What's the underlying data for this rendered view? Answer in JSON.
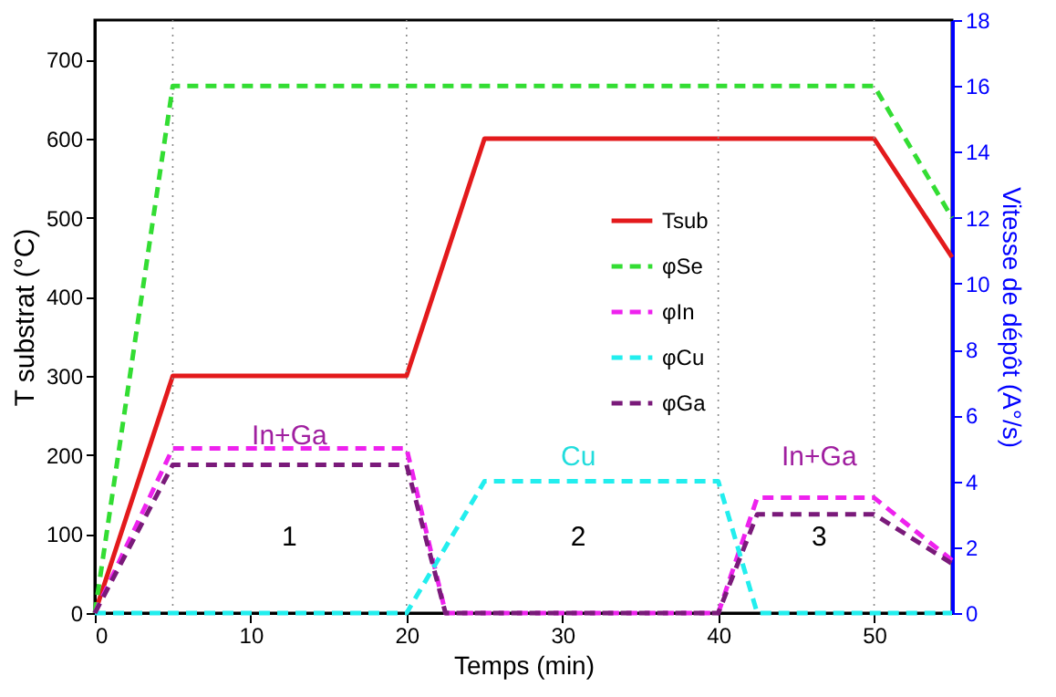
{
  "chart_data": {
    "type": "line",
    "xlabel": "Temps (min)",
    "ylabel": "T substrat (°C)",
    "y2label": "Vitesse de dépôt (A°/s)",
    "xlim": [
      0,
      55
    ],
    "xticks": [
      0,
      10,
      20,
      30,
      40,
      50
    ],
    "ylim": [
      0,
      750
    ],
    "yticks": [
      0,
      100,
      200,
      300,
      400,
      500,
      600,
      700
    ],
    "y2lim": [
      0,
      18
    ],
    "y2ticks": [
      0,
      2,
      4,
      6,
      8,
      10,
      12,
      14,
      16,
      18
    ],
    "legend": "right",
    "grid": false,
    "series": [
      {
        "name": "Tsub",
        "color": "#e31a1c",
        "line_style": "solid",
        "x": [
          0,
          5,
          20,
          25,
          50,
          55
        ],
        "values": [
          0,
          300,
          300,
          600,
          600,
          450
        ]
      },
      {
        "name": "φSe",
        "color": "#33dd33",
        "line_style": "dashed",
        "axis": "y2",
        "x": [
          0,
          5,
          50,
          55
        ],
        "values": [
          0,
          16,
          16,
          12
        ]
      },
      {
        "name": "φIn",
        "color": "#ee22ee",
        "line_style": "dashed",
        "axis": "y2",
        "x": [
          0,
          5,
          20,
          22.5,
          40,
          42.5,
          50,
          55
        ],
        "values": [
          0,
          5,
          5,
          0,
          0,
          3.5,
          3.5,
          1.6
        ]
      },
      {
        "name": "φCu",
        "color": "#22eeee",
        "line_style": "dashed",
        "axis": "y2",
        "x": [
          0,
          20,
          25,
          40,
          42.5,
          55
        ],
        "values": [
          0,
          0,
          4,
          4,
          0,
          0
        ]
      },
      {
        "name": "φGa",
        "color": "#7a1a7a",
        "line_style": "dashed",
        "axis": "y2",
        "x": [
          0,
          5,
          20,
          22.5,
          40,
          42.5,
          50,
          55
        ],
        "values": [
          0,
          4.5,
          4.5,
          0,
          0,
          3,
          3,
          1.5
        ]
      }
    ],
    "ref_lines": [
      {
        "axis": "x",
        "value": 5,
        "label": null,
        "color": "#888888",
        "line_style": "dotted"
      },
      {
        "axis": "x",
        "value": 20,
        "label": null,
        "color": "#888888",
        "line_style": "dotted"
      },
      {
        "axis": "x",
        "value": 40,
        "label": null,
        "color": "#888888",
        "line_style": "dotted"
      },
      {
        "axis": "x",
        "value": 50,
        "label": null,
        "color": "#888888",
        "line_style": "dotted"
      }
    ],
    "annotations": [
      "In+Ga",
      "Cu",
      "In+Ga",
      "1",
      "2",
      "3"
    ]
  }
}
